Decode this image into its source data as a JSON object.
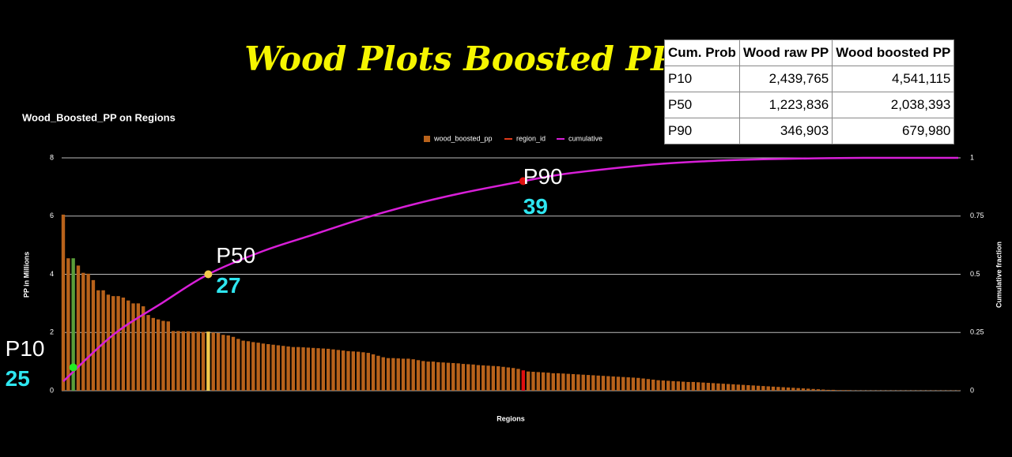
{
  "title": "Wood Plots Boosted PP",
  "table": {
    "header": [
      "Cum. Prob",
      "Wood raw PP",
      "Wood boosted PP"
    ],
    "rows": [
      [
        "P10",
        "2,439,765",
        "4,541,115"
      ],
      [
        "P50",
        "1,223,836",
        "2,038,393"
      ],
      [
        "P90",
        "346,903",
        "679,980"
      ]
    ]
  },
  "chart_data": {
    "type": "bar",
    "title": "Wood_Boosted_PP on Regions",
    "x_label": "Regions",
    "y_label": "PP in Millions",
    "y2_label": "Cumulative fraction",
    "legend": [
      "wood_boosted_pp",
      "region_id",
      "cumulative"
    ],
    "legend_colors": [
      "#b8621b",
      "#e03a1a",
      "#d81fd8"
    ],
    "color": "#b8621b",
    "bar_colors": [
      {
        "index": 2,
        "color": "#5a9e3a"
      },
      {
        "index": 29,
        "color": "#f3c94c"
      },
      {
        "index": 92,
        "color": "#e01010"
      }
    ],
    "values": [
      6.05,
      4.55,
      4.55,
      4.3,
      4.05,
      4.02,
      3.8,
      3.45,
      3.45,
      3.3,
      3.25,
      3.25,
      3.2,
      3.1,
      3.0,
      3.0,
      2.9,
      2.6,
      2.5,
      2.45,
      2.4,
      2.38,
      2.05,
      2.05,
      2.04,
      2.04,
      2.03,
      2.03,
      2.02,
      2.03,
      2.0,
      1.98,
      1.92,
      1.9,
      1.85,
      1.78,
      1.72,
      1.7,
      1.67,
      1.65,
      1.62,
      1.6,
      1.58,
      1.56,
      1.54,
      1.52,
      1.5,
      1.5,
      1.49,
      1.48,
      1.47,
      1.46,
      1.45,
      1.44,
      1.42,
      1.4,
      1.38,
      1.36,
      1.35,
      1.34,
      1.32,
      1.3,
      1.25,
      1.2,
      1.15,
      1.12,
      1.12,
      1.11,
      1.1,
      1.1,
      1.08,
      1.05,
      1.02,
      1.0,
      1.0,
      0.98,
      0.97,
      0.96,
      0.95,
      0.94,
      0.92,
      0.91,
      0.9,
      0.88,
      0.87,
      0.86,
      0.85,
      0.84,
      0.82,
      0.8,
      0.78,
      0.75,
      0.7,
      0.66,
      0.65,
      0.64,
      0.63,
      0.62,
      0.6,
      0.6,
      0.59,
      0.58,
      0.57,
      0.56,
      0.55,
      0.54,
      0.53,
      0.52,
      0.51,
      0.5,
      0.49,
      0.48,
      0.47,
      0.46,
      0.45,
      0.44,
      0.42,
      0.4,
      0.38,
      0.36,
      0.35,
      0.34,
      0.33,
      0.32,
      0.31,
      0.3,
      0.3,
      0.29,
      0.28,
      0.27,
      0.26,
      0.25,
      0.24,
      0.23,
      0.22,
      0.21,
      0.2,
      0.19,
      0.18,
      0.17,
      0.16,
      0.15,
      0.14,
      0.13,
      0.12,
      0.11,
      0.1,
      0.09,
      0.08,
      0.07,
      0.06,
      0.05,
      0.04,
      0.03,
      0.03,
      0.02,
      0.02,
      0.02,
      0.01,
      0.01,
      0.01,
      0.01,
      0.01,
      0.01,
      0.01,
      0.01,
      0.01,
      0.01,
      0.01,
      0.01,
      0.01,
      0.01,
      0.01,
      0.01,
      0.01,
      0.01,
      0.01,
      0.01,
      0.01,
      0.01
    ],
    "cumulative": {
      "color": "#d81fd8",
      "axis": "y2",
      "x": [
        0,
        10,
        20,
        29,
        40,
        50,
        60,
        70,
        80,
        92,
        100,
        110,
        120,
        130,
        140,
        150,
        160,
        179
      ],
      "values": [
        0.04,
        0.24,
        0.38,
        0.5,
        0.6,
        0.67,
        0.74,
        0.8,
        0.85,
        0.9,
        0.93,
        0.955,
        0.975,
        0.987,
        0.994,
        0.998,
        1.0,
        1.0
      ]
    },
    "ylim": [
      0,
      8
    ],
    "yticks": [
      0,
      2,
      4,
      6,
      8
    ],
    "y2lim": [
      0,
      1
    ],
    "y2ticks": [
      0,
      0.25,
      0.5,
      0.75,
      1
    ],
    "grid": true,
    "annotations": [
      {
        "label": "P10",
        "number": 25,
        "x": 2,
        "y": 0.1,
        "color": "#22ee22"
      },
      {
        "label": "P50",
        "number": 27,
        "x": 29,
        "y": 0.5,
        "color": "#f3c94c"
      },
      {
        "label": "P90",
        "number": 39,
        "x": 92,
        "y": 0.9,
        "color": "#e01010"
      }
    ]
  }
}
